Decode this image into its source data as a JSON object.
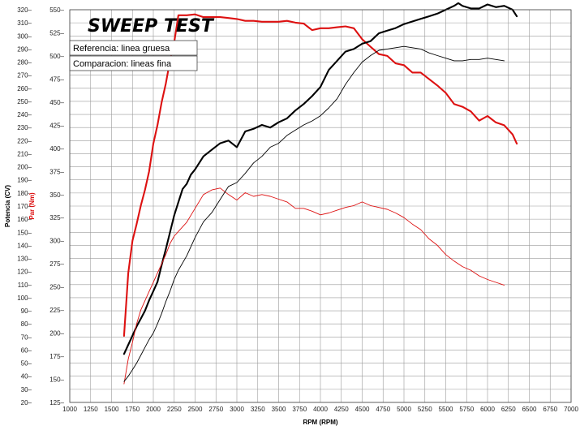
{
  "chart_data": {
    "type": "line",
    "title": "SWEEP TEST",
    "legend": [
      "Referencia: linea gruesa",
      "Comparacion: lineas fina"
    ],
    "legend_placement": "top-left",
    "grid": true,
    "xlabel": "RPM (RPM)",
    "y_left_label": "Potencia (CV)",
    "y_left2_label": "Par (Nm)",
    "colors": {
      "power": "#000000",
      "torque": "#dd1111"
    },
    "x_ticks": [
      1000,
      1250,
      1500,
      1750,
      2000,
      2250,
      2500,
      2750,
      3000,
      3250,
      3500,
      3750,
      4000,
      4250,
      4500,
      4750,
      5000,
      5250,
      5500,
      5750,
      6000,
      6250,
      6500,
      6750,
      7000
    ],
    "xlim": [
      1000,
      7000
    ],
    "power_ticks": [
      20,
      30,
      40,
      50,
      60,
      70,
      80,
      90,
      100,
      110,
      120,
      130,
      140,
      150,
      160,
      170,
      180,
      190,
      200,
      210,
      220,
      230,
      240,
      250,
      260,
      270,
      280,
      290,
      300,
      310,
      320
    ],
    "power_lim": [
      20,
      320
    ],
    "torque_ticks": [
      125,
      150,
      175,
      200,
      225,
      250,
      275,
      300,
      325,
      350,
      375,
      400,
      425,
      450,
      475,
      500,
      525,
      550
    ],
    "torque_lim": [
      125,
      550
    ],
    "series": [
      {
        "name": "Referencia: linea gruesa",
        "quantity": "Par (Nm)",
        "weight": "thick",
        "x": [
          1650,
          1700,
          1750,
          1800,
          1850,
          1900,
          1950,
          2000,
          2050,
          2100,
          2150,
          2200,
          2250,
          2300,
          2400,
          2500,
          2600,
          2700,
          2800,
          2900,
          3000,
          3100,
          3200,
          3300,
          3400,
          3500,
          3600,
          3700,
          3800,
          3900,
          4000,
          4100,
          4200,
          4300,
          4400,
          4500,
          4600,
          4700,
          4800,
          4900,
          5000,
          5100,
          5200,
          5300,
          5400,
          5500,
          5600,
          5700,
          5800,
          5900,
          6000,
          6100,
          6200,
          6300,
          6350
        ],
        "y": [
          197,
          265,
          300,
          318,
          338,
          355,
          375,
          405,
          425,
          450,
          470,
          495,
          515,
          544,
          544,
          545,
          542,
          542,
          542,
          541,
          540,
          538,
          538,
          537,
          537,
          537,
          538,
          536,
          535,
          528,
          530,
          530,
          531,
          532,
          530,
          518,
          510,
          502,
          500,
          492,
          490,
          482,
          482,
          475,
          468,
          460,
          448,
          445,
          440,
          430,
          435,
          428,
          425,
          415,
          405
        ]
      },
      {
        "name": "Referencia: linea gruesa",
        "quantity": "Potencia (CV)",
        "weight": "thick",
        "x": [
          1650,
          1700,
          1750,
          1800,
          1850,
          1900,
          1950,
          2000,
          2050,
          2100,
          2150,
          2200,
          2250,
          2300,
          2350,
          2400,
          2450,
          2500,
          2600,
          2700,
          2800,
          2900,
          3000,
          3100,
          3200,
          3300,
          3400,
          3500,
          3600,
          3700,
          3800,
          3900,
          4000,
          4100,
          4200,
          4300,
          4400,
          4500,
          4600,
          4700,
          4800,
          4900,
          5000,
          5100,
          5200,
          5300,
          5400,
          5500,
          5600,
          5650,
          5700,
          5800,
          5900,
          6000,
          6100,
          6200,
          6300,
          6350
        ],
        "y": [
          57,
          64,
          71,
          78,
          84,
          90,
          98,
          105,
          112,
          125,
          137,
          150,
          163,
          173,
          183,
          187,
          194,
          198,
          208,
          213,
          218,
          220,
          215,
          227,
          229,
          232,
          230,
          234,
          237,
          243,
          248,
          254,
          261,
          274,
          281,
          288,
          290,
          294,
          296,
          302,
          304,
          306,
          309,
          311,
          313,
          315,
          317,
          320,
          323,
          325,
          323,
          321,
          321,
          324,
          322,
          323,
          320,
          315
        ]
      },
      {
        "name": "Comparacion: lineas fina",
        "quantity": "Par (Nm)",
        "weight": "thin",
        "x": [
          1650,
          1700,
          1750,
          1800,
          1850,
          1900,
          1950,
          2000,
          2050,
          2100,
          2150,
          2200,
          2250,
          2300,
          2400,
          2500,
          2600,
          2700,
          2800,
          2900,
          3000,
          3100,
          3200,
          3300,
          3400,
          3500,
          3600,
          3700,
          3800,
          3900,
          4000,
          4100,
          4200,
          4300,
          4400,
          4500,
          4600,
          4700,
          4800,
          4900,
          5000,
          5100,
          5200,
          5300,
          5400,
          5500,
          5600,
          5700,
          5800,
          5900,
          6000,
          6100,
          6200
        ],
        "y": [
          145,
          172,
          190,
          210,
          225,
          235,
          245,
          255,
          265,
          275,
          285,
          297,
          305,
          310,
          320,
          335,
          350,
          355,
          357,
          350,
          344,
          352,
          348,
          350,
          348,
          345,
          342,
          335,
          335,
          332,
          328,
          330,
          333,
          336,
          338,
          342,
          338,
          336,
          334,
          330,
          325,
          318,
          312,
          302,
          295,
          285,
          278,
          272,
          268,
          262,
          258,
          255,
          252
        ]
      },
      {
        "name": "Comparacion: lineas fina",
        "quantity": "Potencia (CV)",
        "weight": "thin",
        "x": [
          1650,
          1700,
          1750,
          1800,
          1850,
          1900,
          1950,
          2000,
          2050,
          2100,
          2150,
          2200,
          2250,
          2300,
          2400,
          2500,
          2600,
          2700,
          2800,
          2900,
          3000,
          3100,
          3200,
          3300,
          3400,
          3500,
          3600,
          3700,
          3800,
          3900,
          4000,
          4100,
          4200,
          4300,
          4400,
          4500,
          4600,
          4700,
          4800,
          4900,
          5000,
          5100,
          5200,
          5300,
          5400,
          5500,
          5600,
          5700,
          5800,
          5900,
          6000,
          6100,
          6200
        ],
        "y": [
          36,
          40,
          45,
          50,
          56,
          62,
          68,
          73,
          80,
          88,
          97,
          105,
          114,
          121,
          132,
          146,
          158,
          165,
          175,
          185,
          188,
          195,
          203,
          208,
          215,
          218,
          224,
          228,
          232,
          235,
          239,
          245,
          252,
          263,
          272,
          280,
          285,
          289,
          290,
          291,
          292,
          291,
          290,
          287,
          285,
          283,
          281,
          281,
          282,
          282,
          283,
          282,
          281
        ]
      }
    ]
  }
}
